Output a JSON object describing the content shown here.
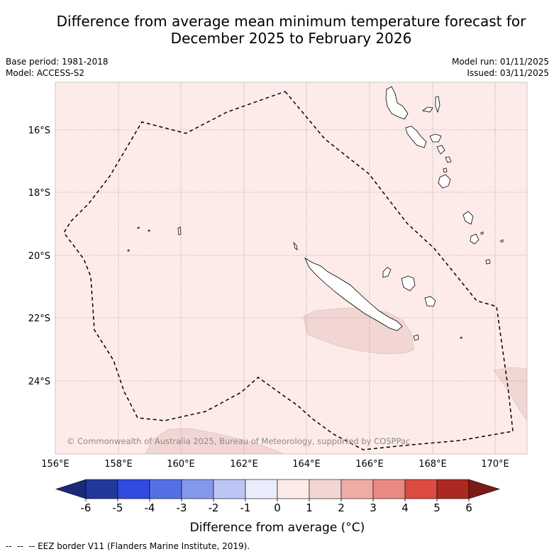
{
  "title": {
    "line1": "Difference from average mean minimum temperature forecast for",
    "line2": "December 2025 to February 2026"
  },
  "meta": {
    "base_period": "Base period: 1981-2018",
    "model": "Model: ACCESS-S2",
    "model_run": "Model run: 01/11/2025",
    "issued": "Issued: 03/11/2025"
  },
  "map": {
    "latitude_labels": [
      "16°S",
      "18°S",
      "20°S",
      "22°S",
      "24°S"
    ],
    "longitude_labels": [
      "156°E",
      "158°E",
      "160°E",
      "162°E",
      "164°E",
      "166°E",
      "168°E",
      "170°E"
    ],
    "copyright": "© Commonwealth of Australia 2025, Bureau of Meteorology, supported by COSPPac",
    "background_category_color": "#fcebe9",
    "warm_area_color": "#f2d6d4",
    "gridline_color": "#777777"
  },
  "legend": {
    "ticks": [
      "-6",
      "-5",
      "-4",
      "-3",
      "-2",
      "-1",
      "0",
      "1",
      "2",
      "3",
      "4",
      "5",
      "6"
    ],
    "colors": [
      "#22389d",
      "#2f4be0",
      "#5470e6",
      "#8497ea",
      "#bcc5f3",
      "#e9edfb",
      "#fdebe8",
      "#f3d6d3",
      "#efaca6",
      "#e98a82",
      "#de4b40",
      "#ad2820"
    ],
    "low_extend_color": "#1a2a7a",
    "high_extend_color": "#7a1c18",
    "label": "Difference from average (°C)"
  },
  "footer": {
    "symbol": "--  --  --",
    "text": "EEZ border V11 (Flanders Marine Institute, 2019)."
  }
}
